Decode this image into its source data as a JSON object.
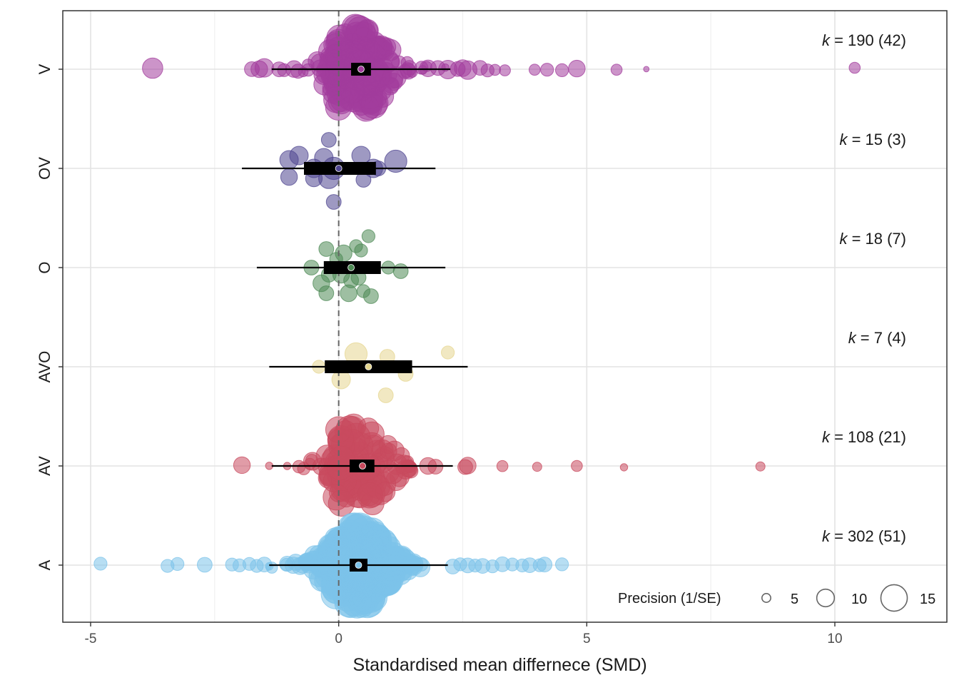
{
  "chart_data": {
    "type": "scatter",
    "subtype": "orchard plot (bee-swarm of effect sizes with pooled estimate, confidence and prediction intervals)",
    "xlabel": "Standardised mean differnece (SMD)",
    "ylabel": "",
    "xlim": [
      -5.6,
      12.1
    ],
    "x_ticks": [
      -5,
      0,
      5,
      10
    ],
    "x_tick_labels": [
      "-5",
      "0",
      "5",
      "10"
    ],
    "reference_line_x": 0,
    "grid": true,
    "legend": {
      "title": "Precision (1/SE)",
      "placement": "bottom-right, inside plot",
      "values": [
        5,
        10,
        15
      ],
      "labels": [
        "5",
        "10",
        "15"
      ]
    },
    "categories": [
      "V",
      "OV",
      "O",
      "AVO",
      "AV",
      "A"
    ],
    "series": [
      {
        "name": "V",
        "color": "#A23C9C",
        "k_label": "k = 190 (42)",
        "k": 190,
        "studies": 42,
        "estimate": 0.45,
        "ci": [
          0.25,
          0.65
        ],
        "pi": [
          -1.35,
          2.25
        ],
        "outlying_points": [
          [
            -3.75,
            11
          ],
          [
            -1.75,
            8
          ],
          [
            -1.6,
            9
          ],
          [
            -1.5,
            10
          ],
          [
            -1.2,
            8
          ],
          [
            -1.1,
            7
          ],
          [
            -0.9,
            9
          ],
          [
            1.8,
            9
          ],
          [
            2.0,
            8
          ],
          [
            2.2,
            10
          ],
          [
            2.4,
            8
          ],
          [
            2.5,
            9
          ],
          [
            2.6,
            10
          ],
          [
            2.85,
            8
          ],
          [
            3.0,
            7
          ],
          [
            3.15,
            6
          ],
          [
            3.35,
            6
          ],
          [
            3.95,
            6
          ],
          [
            4.2,
            7
          ],
          [
            4.5,
            7
          ],
          [
            4.8,
            9
          ],
          [
            5.6,
            6
          ],
          [
            6.2,
            3
          ],
          [
            10.4,
            6
          ]
        ]
      },
      {
        "name": "OV",
        "color": "#4F4590",
        "k_label": "k = 15 (3)",
        "k": 15,
        "studies": 3,
        "estimate": 0.0,
        "ci": [
          -0.7,
          0.75
        ],
        "pi": [
          -1.95,
          1.95
        ]
      },
      {
        "name": "O",
        "color": "#4E8A55",
        "k_label": "k = 18 (7)",
        "k": 18,
        "studies": 7,
        "estimate": 0.25,
        "ci": [
          -0.3,
          0.85
        ],
        "pi": [
          -1.65,
          2.15
        ]
      },
      {
        "name": "AVO",
        "color": "#E5D58F",
        "k_label": "k = 7 (4)",
        "k": 7,
        "studies": 4,
        "estimate": 0.6,
        "ci": [
          -0.28,
          1.48
        ],
        "pi": [
          -1.4,
          2.6
        ]
      },
      {
        "name": "AV",
        "color": "#C84A5E",
        "k_label": "k = 108 (21)",
        "k": 108,
        "studies": 21,
        "estimate": 0.48,
        "ci": [
          0.22,
          0.72
        ],
        "pi": [
          -1.35,
          2.3
        ],
        "outlying_points": [
          [
            -1.95,
            9
          ],
          [
            1.8,
            9
          ],
          [
            1.95,
            8
          ],
          [
            2.55,
            8
          ],
          [
            2.6,
            9
          ],
          [
            3.3,
            6
          ],
          [
            4.0,
            5
          ],
          [
            4.8,
            6
          ],
          [
            5.75,
            4
          ],
          [
            8.5,
            5
          ]
        ]
      },
      {
        "name": "A",
        "color": "#7CC3EA",
        "k_label": "k = 302 (51)",
        "k": 302,
        "studies": 51,
        "estimate": 0.4,
        "ci": [
          0.22,
          0.58
        ],
        "pi": [
          -1.4,
          2.2
        ],
        "outlying_points": [
          [
            -4.8,
            7
          ],
          [
            -3.45,
            7
          ],
          [
            -3.25,
            7
          ],
          [
            -2.7,
            8
          ],
          [
            -2.15,
            7
          ],
          [
            -2.0,
            7
          ],
          [
            -1.8,
            7
          ],
          [
            -1.65,
            7
          ],
          [
            -1.5,
            8
          ],
          [
            2.3,
            8
          ],
          [
            2.45,
            7
          ],
          [
            2.6,
            8
          ],
          [
            2.75,
            7
          ],
          [
            2.9,
            8
          ],
          [
            3.1,
            7
          ],
          [
            3.3,
            8
          ],
          [
            3.5,
            7
          ],
          [
            3.7,
            7
          ],
          [
            3.85,
            8
          ],
          [
            4.05,
            7
          ],
          [
            4.15,
            8
          ],
          [
            4.5,
            7
          ]
        ]
      }
    ]
  }
}
